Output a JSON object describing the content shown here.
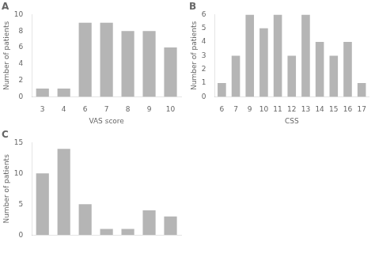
{
  "chart_data": [
    {
      "type": "bar",
      "title": "A",
      "categories": [
        "3",
        "4",
        "6",
        "7",
        "8",
        "9",
        "10"
      ],
      "values": [
        1,
        1,
        9,
        9,
        8,
        8,
        6
      ],
      "xlabel": "VAS score",
      "ylabel": "Number of patients",
      "color": "#b5b5b5",
      "ylim": [
        0,
        10
      ],
      "yticks": [
        0,
        2,
        4,
        6,
        8,
        10
      ],
      "grid": false
    },
    {
      "type": "bar",
      "title": "B",
      "categories": [
        "6",
        "7",
        "9",
        "10",
        "11",
        "12",
        "13",
        "14",
        "15",
        "16",
        "17"
      ],
      "values": [
        1,
        3,
        6,
        5,
        6,
        3,
        6,
        4,
        3,
        4,
        1
      ],
      "xlabel": "CSS",
      "ylabel": "Number of patients",
      "color": "#b5b5b5",
      "ylim": [
        0,
        6
      ],
      "yticks": [
        0,
        1,
        2,
        3,
        4,
        5,
        6
      ],
      "grid": false
    },
    {
      "type": "bar",
      "title": "C",
      "categories": [
        null,
        null,
        null,
        null,
        null,
        null,
        null
      ],
      "values": [
        10,
        14,
        5,
        1,
        1,
        4,
        3
      ],
      "ylabel": "Number of patients",
      "color": "#b5b5b5",
      "ylim": [
        0,
        15
      ],
      "yticks": [
        0,
        5,
        10,
        15
      ],
      "grid": false
    }
  ]
}
